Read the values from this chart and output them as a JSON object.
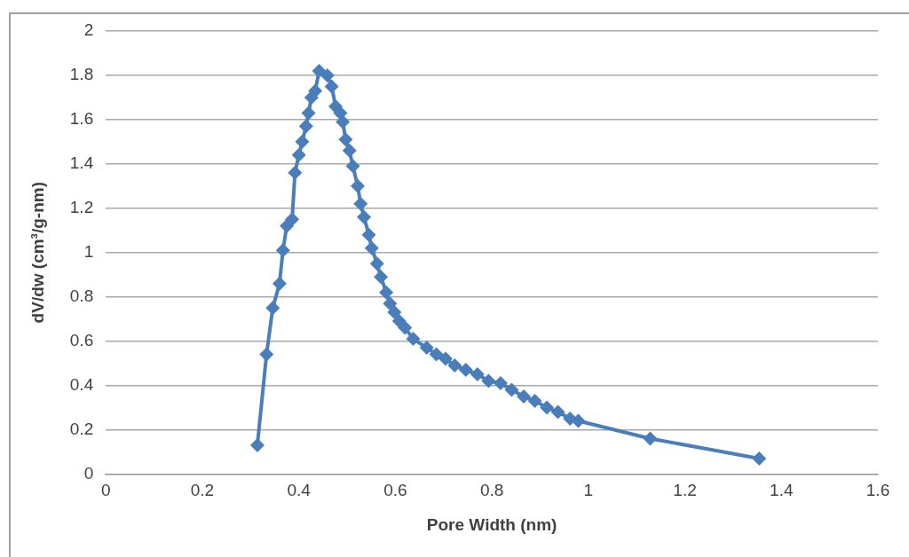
{
  "chart_data": {
    "type": "line",
    "xlabel": "Pore Width (nm)",
    "ylabel": "dV/dw (cm³/g-nm)",
    "x": [
      0.314,
      0.333,
      0.346,
      0.36,
      0.367,
      0.375,
      0.386,
      0.392,
      0.4,
      0.407,
      0.415,
      0.42,
      0.426,
      0.434,
      0.442,
      0.459,
      0.468,
      0.476,
      0.486,
      0.491,
      0.497,
      0.505,
      0.512,
      0.522,
      0.528,
      0.535,
      0.545,
      0.551,
      0.562,
      0.57,
      0.581,
      0.589,
      0.598,
      0.608,
      0.62,
      0.637,
      0.665,
      0.685,
      0.704,
      0.723,
      0.746,
      0.77,
      0.793,
      0.818,
      0.841,
      0.866,
      0.889,
      0.914,
      0.937,
      0.962,
      0.979,
      1.128,
      1.354
    ],
    "series": [
      {
        "color": "#4a7ebb",
        "values": [
          0.13,
          0.54,
          0.75,
          0.86,
          1.01,
          1.12,
          1.15,
          1.36,
          1.44,
          1.5,
          1.57,
          1.63,
          1.7,
          1.73,
          1.82,
          1.8,
          1.75,
          1.66,
          1.63,
          1.59,
          1.51,
          1.46,
          1.39,
          1.3,
          1.22,
          1.16,
          1.08,
          1.02,
          0.95,
          0.89,
          0.82,
          0.77,
          0.73,
          0.69,
          0.66,
          0.61,
          0.57,
          0.54,
          0.52,
          0.49,
          0.47,
          0.45,
          0.42,
          0.41,
          0.38,
          0.35,
          0.33,
          0.3,
          0.28,
          0.25,
          0.24,
          0.16,
          0.07
        ]
      }
    ],
    "xlim": [
      0,
      1.6
    ],
    "xticks": [
      0,
      0.2,
      0.4,
      0.6,
      0.8,
      1,
      1.2,
      1.4,
      1.6
    ],
    "ylim": [
      0,
      2
    ],
    "yticks": [
      0,
      0.2,
      0.4,
      0.6,
      0.8,
      1,
      1.2,
      1.4,
      1.6,
      1.8,
      2
    ],
    "grid": "y",
    "legend": false,
    "marker": "diamond",
    "line_style": "solid"
  }
}
